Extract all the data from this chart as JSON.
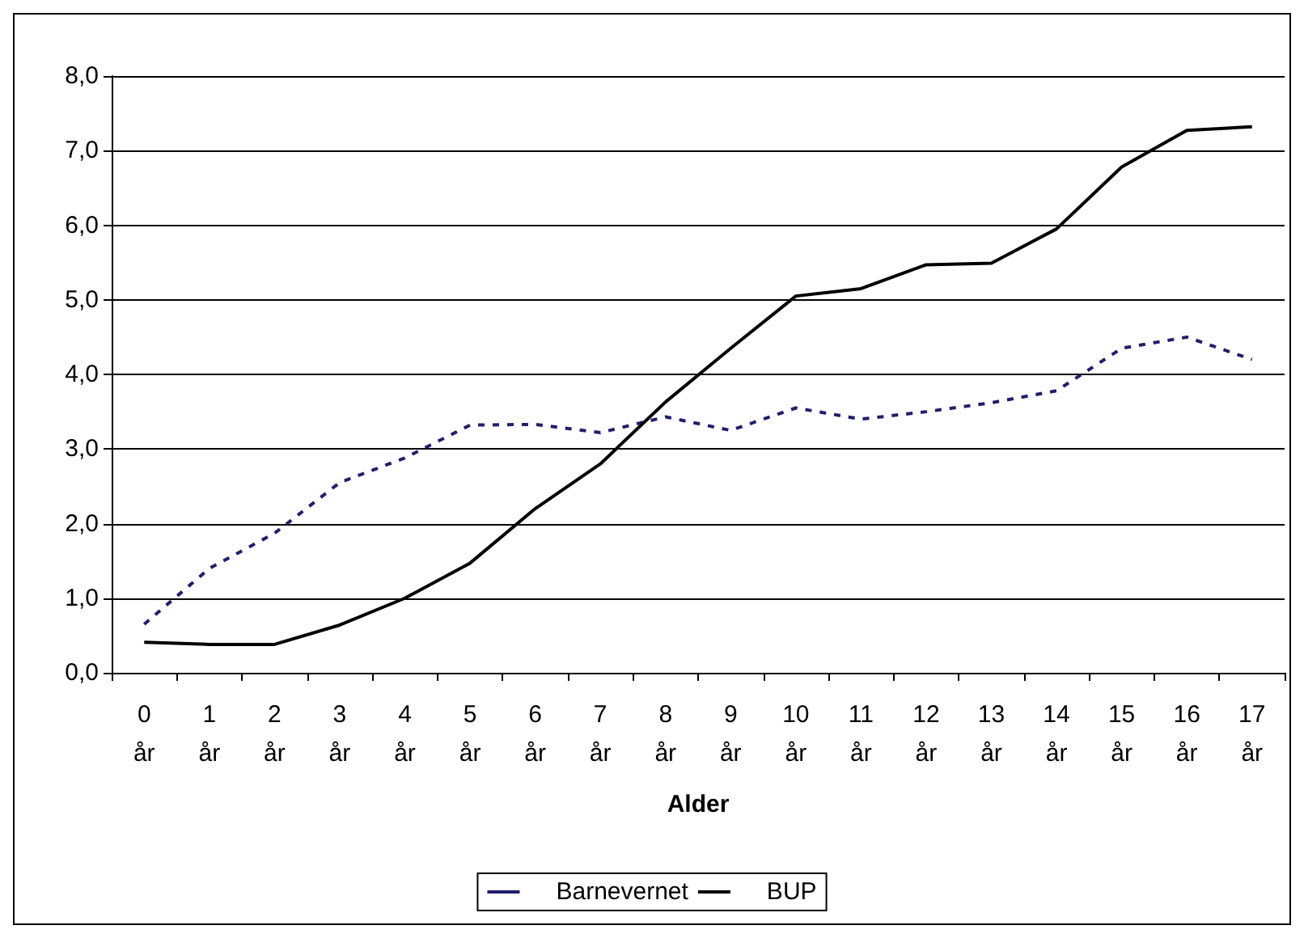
{
  "chart_data": {
    "type": "line",
    "xlabel": "Alder",
    "categories": [
      "0\når",
      "1\når",
      "2\når",
      "3\når",
      "4\når",
      "5\når",
      "6\når",
      "7\når",
      "8\når",
      "9\når",
      "10\når",
      "11\når",
      "12\når",
      "13\når",
      "14\når",
      "15\når",
      "16\når",
      "17\når"
    ],
    "series": [
      {
        "name": "Barnevernet",
        "color": "#1f1f6e",
        "line_style": "dotted",
        "values": [
          0.65,
          1.4,
          1.87,
          2.55,
          2.88,
          3.32,
          3.33,
          3.22,
          3.43,
          3.25,
          3.55,
          3.4,
          3.5,
          3.62,
          3.78,
          4.35,
          4.5,
          4.2
        ]
      },
      {
        "name": "BUP",
        "color": "#000000",
        "line_style": "solid",
        "values": [
          0.41,
          0.38,
          0.38,
          0.64,
          1.0,
          1.47,
          2.2,
          2.8,
          3.63,
          4.35,
          5.05,
          5.15,
          5.47,
          5.49,
          5.95,
          6.78,
          7.27,
          7.32
        ]
      }
    ],
    "ylim": [
      0,
      8
    ],
    "yticks": [
      {
        "value": 0,
        "label": "0,0"
      },
      {
        "value": 1,
        "label": "1,0"
      },
      {
        "value": 2,
        "label": "2,0"
      },
      {
        "value": 3,
        "label": "3,0"
      },
      {
        "value": 4,
        "label": "4,0"
      },
      {
        "value": 5,
        "label": "5,0"
      },
      {
        "value": 6,
        "label": "6,0"
      },
      {
        "value": 7,
        "label": "7,0"
      },
      {
        "value": 8,
        "label": "8,0"
      }
    ],
    "grid": "y",
    "legend": "bottom",
    "marker": "none"
  }
}
